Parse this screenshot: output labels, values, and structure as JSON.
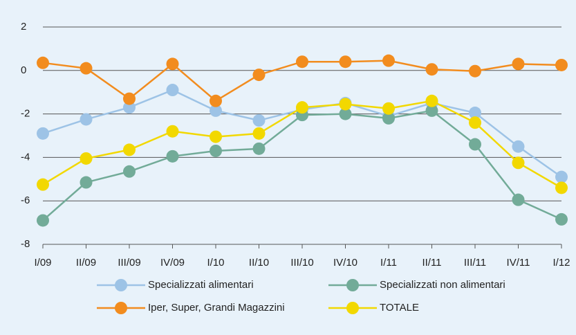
{
  "chart_data": {
    "type": "line",
    "categories": [
      "I/09",
      "II/09",
      "III/09",
      "IV/09",
      "I/10",
      "II/10",
      "III/10",
      "IV/10",
      "I/11",
      "II/11",
      "III/11",
      "IV/11",
      "I/12"
    ],
    "series": [
      {
        "name": "Specializzati alimentari",
        "color": "#9dc3e6",
        "values": [
          -2.9,
          -2.25,
          -1.7,
          -0.9,
          -1.85,
          -2.3,
          -1.8,
          -1.5,
          -2.1,
          -1.5,
          -1.95,
          -3.5,
          -4.9
        ]
      },
      {
        "name": "Specializzati non alimentari",
        "color": "#72ab98",
        "values": [
          -6.9,
          -5.15,
          -4.65,
          -3.95,
          -3.7,
          -3.6,
          -2.05,
          -2.0,
          -2.2,
          -1.85,
          -3.4,
          -5.95,
          -6.85
        ]
      },
      {
        "name": "Iper, Super, Grandi Magazzini",
        "color": "#f28c1e",
        "values": [
          0.35,
          0.1,
          -1.3,
          0.3,
          -1.4,
          -0.2,
          0.4,
          0.4,
          0.45,
          0.05,
          -0.03,
          0.3,
          0.25
        ]
      },
      {
        "name": "TOTALE",
        "color": "#f2d800",
        "values": [
          -5.25,
          -4.05,
          -3.65,
          -2.8,
          -3.05,
          -2.9,
          -1.7,
          -1.55,
          -1.75,
          -1.4,
          -2.4,
          -4.25,
          -5.4
        ]
      }
    ],
    "ylim": [
      -8,
      2
    ],
    "yticks": [
      -8,
      -6,
      -4,
      -2,
      0,
      2
    ],
    "grid": true,
    "legend": "bottom"
  }
}
